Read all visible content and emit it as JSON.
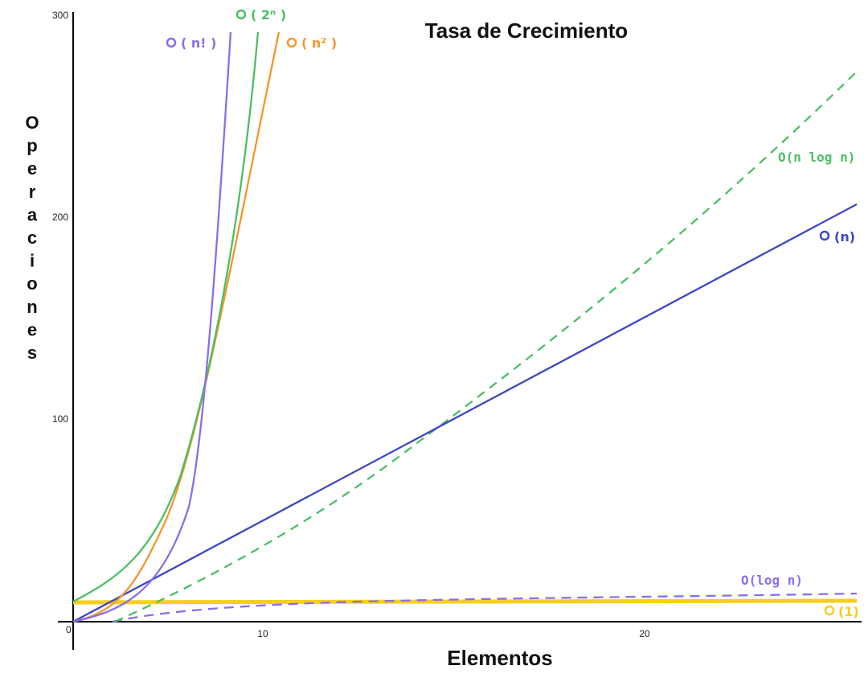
{
  "chart_data": {
    "type": "line",
    "title": "Tasa de Crecimiento",
    "xlabel": "Elementos",
    "ylabel": "Operaciones",
    "xlim": [
      0,
      25
    ],
    "ylim": [
      0,
      300
    ],
    "x_ticks": [
      "0",
      "10",
      "20"
    ],
    "y_ticks": [
      "100",
      "200",
      "300"
    ],
    "grid": false,
    "series": [
      {
        "name": "O(n!)",
        "label": "( n! )",
        "color": "#8b6ee8",
        "style": "solid",
        "x": [
          0,
          1,
          2,
          3,
          4,
          5,
          6,
          7,
          8
        ],
        "y": [
          0,
          1,
          2,
          6,
          24,
          120,
          280,
          300,
          300
        ]
      },
      {
        "name": "O(2^n)",
        "label": "( 2ⁿ )",
        "color": "#4cbf62",
        "style": "solid",
        "x": [
          0,
          2,
          4,
          6,
          7,
          8,
          9.2
        ],
        "y": [
          1,
          4,
          16,
          64,
          128,
          256,
          300
        ]
      },
      {
        "name": "O(n^2)",
        "label": "( n² )",
        "color": "#f5962a",
        "style": "solid",
        "x": [
          0,
          2,
          4,
          6,
          8,
          10.5
        ],
        "y": [
          0,
          4,
          16,
          36,
          64,
          300
        ]
      },
      {
        "name": "O(n log n)",
        "label": "O(n log n)",
        "color": "#4cbf62",
        "style": "dashed",
        "x": [
          2,
          5,
          10,
          15,
          20,
          25,
          27.6
        ],
        "y": [
          0,
          20,
          60,
          100,
          150,
          220,
          280
        ]
      },
      {
        "name": "O(n)",
        "label": "(n)",
        "color": "#3d47c4",
        "style": "solid",
        "x": [
          0,
          5,
          10,
          15,
          20,
          25,
          27.6
        ],
        "y": [
          0,
          38,
          75,
          113,
          150,
          188,
          212
        ]
      },
      {
        "name": "O(log n)",
        "label": "O(log n)",
        "color": "#8b6ee8",
        "style": "dashed",
        "x": [
          2,
          5,
          10,
          15,
          20,
          27.6
        ],
        "y": [
          0,
          6,
          9,
          11,
          12,
          14
        ]
      },
      {
        "name": "O(1)",
        "label": "(1)",
        "color": "#f5cf1e",
        "style": "solid",
        "x": [
          0,
          27.6
        ],
        "y": [
          10,
          10
        ]
      }
    ]
  }
}
